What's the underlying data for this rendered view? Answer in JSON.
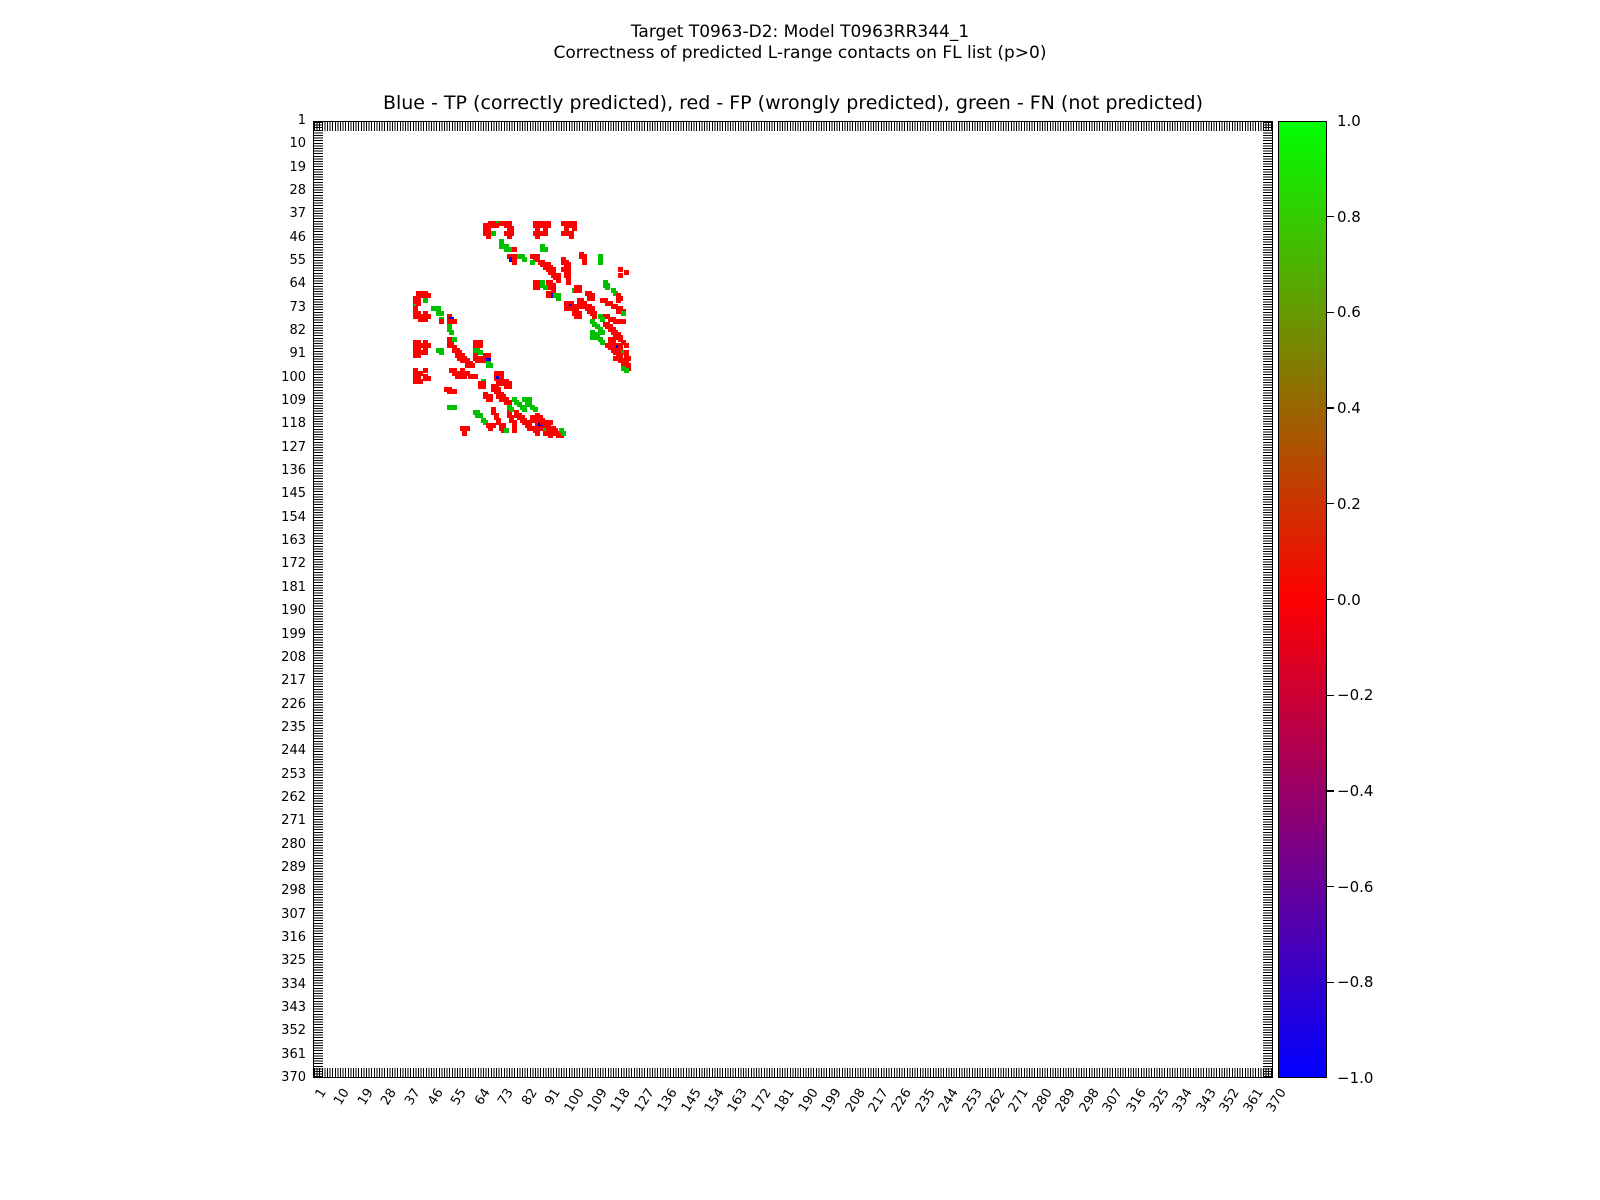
{
  "titles": {
    "line1": "Target T0963-D2: Model T0963RR344_1",
    "line2": "Correctness of predicted L-range contacts on FL list (p>0)"
  },
  "axes_title": "Blue - TP (correctly predicted), red - FP (wrongly predicted), green - FN (not predicted)",
  "colors": {
    "tp_blue": "#0000ee",
    "fp_red": "#ff0000",
    "fn_green": "#00c000",
    "colorbar_top": "#00ff00",
    "colorbar_mid": "#ff0000",
    "colorbar_bottom": "#0000ff",
    "axis": "#000000"
  },
  "chart_data": {
    "type": "scatter",
    "subtype": "contact-map",
    "title": "Blue - TP (correctly predicted), red - FP (wrongly predicted), green - FN (not predicted)",
    "xlabel": "",
    "ylabel": "",
    "xlim": [
      1,
      370
    ],
    "ylim": [
      1,
      370
    ],
    "y_axis_inverted": true,
    "grid": false,
    "axis_tick_values": [
      1,
      10,
      19,
      28,
      37,
      46,
      55,
      64,
      73,
      82,
      91,
      100,
      109,
      118,
      127,
      136,
      145,
      154,
      163,
      172,
      181,
      190,
      199,
      208,
      217,
      226,
      235,
      244,
      253,
      262,
      271,
      280,
      289,
      298,
      307,
      316,
      325,
      334,
      343,
      352,
      361,
      370
    ],
    "minor_ticks_every_residue": true,
    "symmetric": true,
    "point_legend": {
      "r": "FP (wrongly predicted)",
      "g": "FN (not predicted)",
      "b": "TP (correctly predicted)"
    },
    "points": [
      [
        40,
        69,
        "r"
      ],
      [
        40,
        70,
        "r"
      ],
      [
        40,
        71,
        "r"
      ],
      [
        40,
        72,
        "g"
      ],
      [
        40,
        73,
        "r"
      ],
      [
        40,
        75,
        "r"
      ],
      [
        40,
        76,
        "r"
      ],
      [
        40,
        86,
        "r"
      ],
      [
        40,
        87,
        "r"
      ],
      [
        40,
        88,
        "r"
      ],
      [
        40,
        90,
        "r"
      ],
      [
        40,
        91,
        "r"
      ],
      [
        40,
        97,
        "r"
      ],
      [
        40,
        98,
        "r"
      ],
      [
        40,
        100,
        "r"
      ],
      [
        40,
        101,
        "r"
      ],
      [
        41,
        67,
        "r"
      ],
      [
        41,
        68,
        "r"
      ],
      [
        41,
        70,
        "r"
      ],
      [
        41,
        71,
        "r"
      ],
      [
        41,
        75,
        "r"
      ],
      [
        41,
        76,
        "r"
      ],
      [
        41,
        86,
        "r"
      ],
      [
        41,
        88,
        "r"
      ],
      [
        41,
        91,
        "r"
      ],
      [
        41,
        98,
        "r"
      ],
      [
        41,
        100,
        "r"
      ],
      [
        42,
        67,
        "r"
      ],
      [
        42,
        68,
        "r"
      ],
      [
        42,
        76,
        "r"
      ],
      [
        42,
        77,
        "r"
      ],
      [
        42,
        87,
        "r"
      ],
      [
        42,
        90,
        "r"
      ],
      [
        42,
        98,
        "r"
      ],
      [
        42,
        101,
        "r"
      ],
      [
        44,
        67,
        "r"
      ],
      [
        44,
        68,
        "r"
      ],
      [
        44,
        70,
        "g"
      ],
      [
        44,
        75,
        "r"
      ],
      [
        44,
        76,
        "r"
      ],
      [
        44,
        77,
        "r"
      ],
      [
        44,
        86,
        "r"
      ],
      [
        44,
        87,
        "r"
      ],
      [
        44,
        89,
        "r"
      ],
      [
        44,
        90,
        "r"
      ],
      [
        44,
        97,
        "r"
      ],
      [
        44,
        99,
        "r"
      ],
      [
        44,
        100,
        "r"
      ],
      [
        45,
        68,
        "r"
      ],
      [
        45,
        76,
        "r"
      ],
      [
        45,
        87,
        "r"
      ],
      [
        45,
        100,
        "r"
      ],
      [
        47,
        73,
        "g"
      ],
      [
        49,
        73,
        "g"
      ],
      [
        49,
        75,
        "g"
      ],
      [
        49,
        89,
        "g"
      ],
      [
        50,
        75,
        "g"
      ],
      [
        50,
        77,
        "g"
      ],
      [
        50,
        78,
        "r"
      ],
      [
        50,
        89,
        "g"
      ],
      [
        50,
        90,
        "g"
      ],
      [
        52,
        104,
        "r"
      ],
      [
        53,
        76,
        "r"
      ],
      [
        53,
        77,
        "r"
      ],
      [
        53,
        78,
        "r"
      ],
      [
        53,
        80,
        "g"
      ],
      [
        53,
        81,
        "g"
      ],
      [
        53,
        85,
        "r"
      ],
      [
        53,
        86,
        "r"
      ],
      [
        53,
        87,
        "r"
      ],
      [
        53,
        104,
        "r"
      ],
      [
        53,
        105,
        "r"
      ],
      [
        53,
        111,
        "g"
      ],
      [
        54,
        77,
        "b"
      ],
      [
        54,
        78,
        "r"
      ],
      [
        54,
        82,
        "g"
      ],
      [
        54,
        86,
        "r"
      ],
      [
        54,
        87,
        "r"
      ],
      [
        54,
        97,
        "r"
      ],
      [
        54,
        105,
        "r"
      ],
      [
        54,
        111,
        "g"
      ],
      [
        55,
        78,
        "r"
      ],
      [
        55,
        85,
        "g"
      ],
      [
        55,
        88,
        "r"
      ],
      [
        55,
        89,
        "r"
      ],
      [
        55,
        97,
        "r"
      ],
      [
        55,
        98,
        "r"
      ],
      [
        55,
        105,
        "r"
      ],
      [
        55,
        111,
        "g"
      ],
      [
        56,
        89,
        "r"
      ],
      [
        56,
        90,
        "r"
      ],
      [
        56,
        91,
        "r"
      ],
      [
        56,
        99,
        "r"
      ],
      [
        57,
        90,
        "r"
      ],
      [
        57,
        91,
        "r"
      ],
      [
        57,
        92,
        "r"
      ],
      [
        57,
        98,
        "r"
      ],
      [
        57,
        99,
        "r"
      ],
      [
        58,
        91,
        "r"
      ],
      [
        58,
        92,
        "r"
      ],
      [
        58,
        93,
        "r"
      ],
      [
        58,
        97,
        "r"
      ],
      [
        58,
        98,
        "r"
      ],
      [
        58,
        99,
        "r"
      ],
      [
        58,
        119,
        "r"
      ],
      [
        59,
        92,
        "r"
      ],
      [
        59,
        93,
        "r"
      ],
      [
        59,
        98,
        "r"
      ],
      [
        59,
        99,
        "r"
      ],
      [
        59,
        121,
        "r"
      ],
      [
        60,
        93,
        "r"
      ],
      [
        60,
        94,
        "r"
      ],
      [
        60,
        95,
        "r"
      ],
      [
        60,
        98,
        "r"
      ],
      [
        60,
        119,
        "r"
      ],
      [
        61,
        94,
        "r"
      ],
      [
        61,
        95,
        "r"
      ],
      [
        61,
        99,
        "r"
      ],
      [
        62,
        95,
        "r"
      ],
      [
        62,
        99,
        "r"
      ],
      [
        63,
        86,
        "r"
      ],
      [
        63,
        87,
        "r"
      ],
      [
        63,
        89,
        "g"
      ],
      [
        63,
        91,
        "r"
      ],
      [
        63,
        92,
        "r"
      ],
      [
        63,
        99,
        "r"
      ],
      [
        63,
        113,
        "g"
      ],
      [
        64,
        86,
        "r"
      ],
      [
        64,
        87,
        "r"
      ],
      [
        64,
        89,
        "g"
      ],
      [
        64,
        92,
        "r"
      ],
      [
        64,
        93,
        "r"
      ],
      [
        64,
        113,
        "g"
      ],
      [
        64,
        114,
        "g"
      ],
      [
        65,
        86,
        "r"
      ],
      [
        65,
        87,
        "r"
      ],
      [
        65,
        90,
        "g"
      ],
      [
        65,
        92,
        "r"
      ],
      [
        65,
        93,
        "r"
      ],
      [
        65,
        102,
        "r"
      ],
      [
        65,
        103,
        "r"
      ],
      [
        65,
        114,
        "g"
      ],
      [
        66,
        93,
        "r"
      ],
      [
        66,
        101,
        "g"
      ],
      [
        66,
        102,
        "r"
      ],
      [
        66,
        103,
        "r"
      ],
      [
        66,
        116,
        "g"
      ],
      [
        67,
        91,
        "r"
      ],
      [
        67,
        92,
        "r"
      ],
      [
        67,
        106,
        "r"
      ],
      [
        67,
        107,
        "r"
      ],
      [
        67,
        117,
        "g"
      ],
      [
        68,
        91,
        "r"
      ],
      [
        68,
        92,
        "r"
      ],
      [
        68,
        93,
        "b"
      ],
      [
        68,
        94,
        "g"
      ],
      [
        68,
        95,
        "g"
      ],
      [
        68,
        107,
        "r"
      ],
      [
        68,
        108,
        "r"
      ],
      [
        68,
        118,
        "r"
      ],
      [
        69,
        95,
        "g"
      ],
      [
        69,
        107,
        "r"
      ],
      [
        69,
        108,
        "r"
      ],
      [
        69,
        118,
        "r"
      ],
      [
        69,
        119,
        "r"
      ],
      [
        70,
        103,
        "r"
      ],
      [
        70,
        104,
        "r"
      ],
      [
        70,
        112,
        "r"
      ],
      [
        70,
        113,
        "r"
      ],
      [
        70,
        118,
        "r"
      ],
      [
        71,
        98,
        "r"
      ],
      [
        71,
        99,
        "r"
      ],
      [
        71,
        100,
        "r"
      ],
      [
        71,
        103,
        "r"
      ],
      [
        71,
        104,
        "r"
      ],
      [
        71,
        105,
        "r"
      ],
      [
        71,
        114,
        "r"
      ],
      [
        71,
        115,
        "r"
      ],
      [
        72,
        98,
        "r"
      ],
      [
        72,
        99,
        "r"
      ],
      [
        72,
        100,
        "b"
      ],
      [
        72,
        101,
        "r"
      ],
      [
        72,
        104,
        "r"
      ],
      [
        72,
        105,
        "r"
      ],
      [
        72,
        106,
        "r"
      ],
      [
        72,
        107,
        "r"
      ],
      [
        72,
        116,
        "r"
      ],
      [
        72,
        117,
        "r"
      ],
      [
        73,
        98,
        "r"
      ],
      [
        73,
        99,
        "r"
      ],
      [
        73,
        100,
        "r"
      ],
      [
        73,
        101,
        "r"
      ],
      [
        73,
        102,
        "r"
      ],
      [
        73,
        106,
        "r"
      ],
      [
        73,
        107,
        "r"
      ],
      [
        73,
        108,
        "r"
      ],
      [
        73,
        118,
        "r"
      ],
      [
        73,
        119,
        "r"
      ],
      [
        74,
        107,
        "r"
      ],
      [
        74,
        108,
        "r"
      ],
      [
        74,
        118,
        "r"
      ],
      [
        74,
        119,
        "r"
      ],
      [
        74,
        120,
        "r"
      ],
      [
        75,
        101,
        "r"
      ],
      [
        75,
        102,
        "r"
      ],
      [
        75,
        103,
        "r"
      ],
      [
        75,
        108,
        "r"
      ],
      [
        75,
        109,
        "r"
      ],
      [
        75,
        120,
        "g"
      ],
      [
        76,
        102,
        "r"
      ],
      [
        76,
        103,
        "r"
      ],
      [
        76,
        109,
        "r"
      ],
      [
        76,
        111,
        "g"
      ],
      [
        76,
        113,
        "r"
      ],
      [
        76,
        114,
        "r"
      ],
      [
        77,
        112,
        "g"
      ],
      [
        77,
        115,
        "r"
      ],
      [
        77,
        116,
        "r"
      ],
      [
        78,
        108,
        "g"
      ],
      [
        78,
        117,
        "r"
      ],
      [
        78,
        118,
        "r"
      ],
      [
        78,
        119,
        "r"
      ],
      [
        78,
        120,
        "r"
      ],
      [
        79,
        109,
        "g"
      ],
      [
        79,
        113,
        "r"
      ],
      [
        79,
        114,
        "r"
      ],
      [
        80,
        110,
        "g"
      ],
      [
        80,
        114,
        "r"
      ],
      [
        80,
        115,
        "r"
      ],
      [
        81,
        111,
        "g"
      ],
      [
        81,
        115,
        "r"
      ],
      [
        81,
        116,
        "r"
      ],
      [
        82,
        108,
        "g"
      ],
      [
        82,
        112,
        "g"
      ],
      [
        82,
        116,
        "r"
      ],
      [
        82,
        117,
        "r"
      ],
      [
        83,
        108,
        "g"
      ],
      [
        83,
        110,
        "g"
      ],
      [
        83,
        117,
        "r"
      ],
      [
        83,
        118,
        "r"
      ],
      [
        84,
        108,
        "g"
      ],
      [
        84,
        110,
        "g"
      ],
      [
        84,
        118,
        "r"
      ],
      [
        84,
        119,
        "r"
      ],
      [
        85,
        111,
        "g"
      ],
      [
        85,
        115,
        "r"
      ],
      [
        85,
        116,
        "r"
      ],
      [
        85,
        119,
        "r"
      ],
      [
        86,
        112,
        "g"
      ],
      [
        86,
        115,
        "r"
      ],
      [
        86,
        116,
        "r"
      ],
      [
        86,
        120,
        "r"
      ],
      [
        87,
        114,
        "r"
      ],
      [
        87,
        115,
        "r"
      ],
      [
        87,
        117,
        "r"
      ],
      [
        87,
        118,
        "r"
      ],
      [
        87,
        121,
        "r"
      ],
      [
        88,
        115,
        "r"
      ],
      [
        88,
        116,
        "r"
      ],
      [
        88,
        117,
        "r"
      ],
      [
        88,
        118,
        "b"
      ],
      [
        88,
        119,
        "r"
      ],
      [
        89,
        116,
        "r"
      ],
      [
        89,
        117,
        "r"
      ],
      [
        89,
        119,
        "r"
      ],
      [
        90,
        117,
        "r"
      ],
      [
        90,
        118,
        "r"
      ],
      [
        90,
        120,
        "g"
      ],
      [
        90,
        121,
        "r"
      ],
      [
        91,
        118,
        "r"
      ],
      [
        91,
        119,
        "r"
      ],
      [
        91,
        121,
        "r"
      ],
      [
        92,
        117,
        "r"
      ],
      [
        92,
        119,
        "r"
      ],
      [
        92,
        122,
        "r"
      ],
      [
        93,
        119,
        "r"
      ],
      [
        93,
        120,
        "r"
      ],
      [
        94,
        120,
        "r"
      ],
      [
        94,
        121,
        "r"
      ],
      [
        95,
        121,
        "r"
      ],
      [
        95,
        122,
        "r"
      ],
      [
        96,
        120,
        "g"
      ],
      [
        96,
        122,
        "r"
      ],
      [
        97,
        121,
        "g"
      ]
    ],
    "colorbar": {
      "tick_labels": [
        "1.0",
        "0.8",
        "0.6",
        "0.4",
        "0.2",
        "0.0",
        "−0.2",
        "−0.4",
        "−0.6",
        "−0.8",
        "−1.0"
      ],
      "tick_values": [
        1.0,
        0.8,
        0.6,
        0.4,
        0.2,
        0.0,
        -0.2,
        -0.4,
        -0.6,
        -0.8,
        -1.0
      ],
      "gradient_stops": {
        "1.0": "#00ff00",
        "0.0": "#ff0000",
        "-1.0": "#0000ff"
      }
    }
  }
}
